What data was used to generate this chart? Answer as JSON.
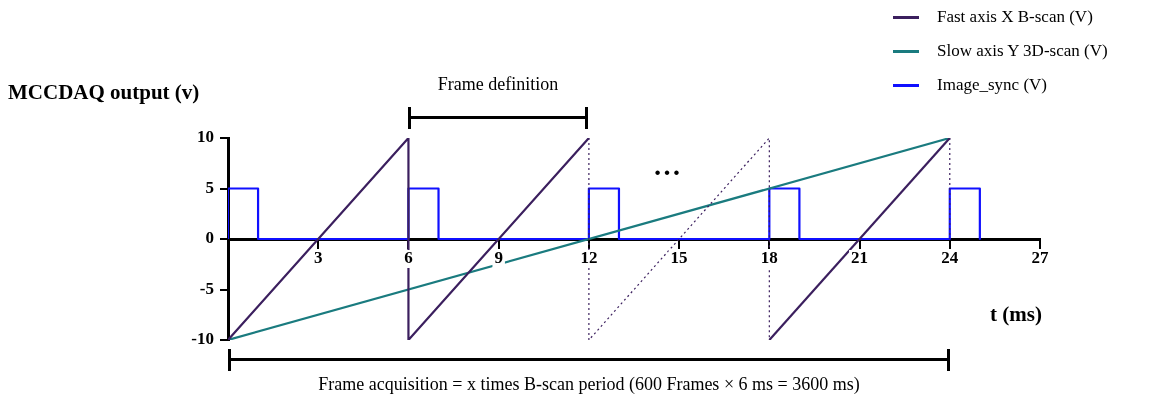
{
  "chart_data": {
    "type": "line",
    "ylabel": "MCCDAQ output (v)",
    "xlabel": "t (ms)",
    "xlim": [
      0,
      27
    ],
    "xticks": [
      3,
      6,
      9,
      12,
      15,
      18,
      21,
      24,
      27
    ],
    "ylim": [
      -10,
      10
    ],
    "yticks": [
      -10,
      -5,
      0,
      5,
      10
    ],
    "grid": false,
    "legend": "top right",
    "marker": "none",
    "annotations": [
      "Frame definition",
      "…",
      "Frame acquisition = x times B-scan period (600 Frames × 6 ms = 3600 ms)"
    ],
    "series": [
      {
        "name": "Fast axis X B-scan (V)",
        "color": "#3b1f5e",
        "line_style": "solid",
        "x": [
          0,
          6,
          6,
          12
        ],
        "values": [
          -10,
          10,
          -10,
          10
        ]
      },
      {
        "color": "#3b1f5e",
        "line_style": "solid",
        "x": [
          18,
          24
        ],
        "values": [
          -10,
          10
        ]
      },
      {
        "color": "#3b1f5e",
        "line_style": "dotted",
        "x": [
          12,
          12,
          18,
          18
        ],
        "values": [
          10,
          -10,
          10,
          -10
        ]
      },
      {
        "color": "#3b1f5e",
        "line_style": "dotted",
        "x": [
          24,
          24
        ],
        "values": [
          10,
          0
        ]
      },
      {
        "name": "Slow axis Y 3D-scan  (V)",
        "color": "#1a7b7f",
        "line_style": "solid",
        "x": [
          0,
          24
        ],
        "values": [
          -10,
          10
        ]
      },
      {
        "name": "Image_sync (V)",
        "color": "#1010ff",
        "line_style": "solid",
        "x": [
          0,
          0,
          1,
          1,
          6,
          6,
          7,
          7,
          12,
          12,
          13,
          13,
          18,
          18,
          19,
          19,
          24,
          24,
          25,
          25
        ],
        "values": [
          0,
          5,
          5,
          0,
          0,
          5,
          5,
          0,
          0,
          5,
          5,
          0,
          0,
          5,
          5,
          0,
          0,
          5,
          5,
          0
        ]
      }
    ]
  }
}
